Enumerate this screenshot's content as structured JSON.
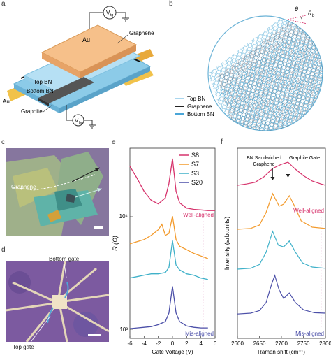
{
  "panel_labels": {
    "a": "a",
    "b": "b",
    "c": "c",
    "d": "d",
    "e": "e",
    "f": "f"
  },
  "panel_a": {
    "au_top": "Au",
    "au_left": "Au",
    "graphene": "Graphene",
    "top_bn": "Top BN",
    "bottom_bn": "Bottom BN",
    "graphite": "Graphite",
    "vtg": "V",
    "vtg_sub": "tg",
    "vbg": "V",
    "vbg_sub": "bg"
  },
  "panel_b": {
    "theta": "θ",
    "theta_b": "θ",
    "theta_b_sub": "b",
    "legend": [
      "Top BN",
      "Graphene",
      "Bottom BN"
    ],
    "colors": {
      "top_bn": "#a9d6ee",
      "graphene": "#222222",
      "bottom_bn": "#4aa6d8"
    }
  },
  "panel_c": {
    "graphene": "Graphene"
  },
  "panel_d": {
    "bottom_gate": "Bottom gate",
    "top_gate": "Top gate"
  },
  "chart_data": [
    {
      "type": "line",
      "panel": "e",
      "xlabel": "Gate Voltage (V)",
      "ylabel": "R (Ω)",
      "xlim": [
        -6,
        6
      ],
      "x_ticks": [
        "-6",
        "-4",
        "-2",
        "0",
        "2",
        "4",
        "6"
      ],
      "y_ticks": [
        "10³",
        "10⁴"
      ],
      "annotations": [
        "Well-aligned",
        "Mis-aligned"
      ],
      "legend_position": "top-right",
      "series": [
        {
          "name": "S8",
          "color": "#d6336c",
          "x": [
            -6,
            -5,
            -4,
            -3,
            -2,
            -1,
            -0.5,
            0,
            0.5,
            1,
            2,
            3,
            4,
            5,
            6
          ],
          "y": [
            21000,
            17000,
            13500,
            11500,
            10800,
            12000,
            15500,
            24000,
            13500,
            11000,
            10000,
            9800,
            9700,
            9600,
            9600
          ]
        },
        {
          "name": "S7",
          "color": "#f39a2b",
          "x": [
            -6,
            -5,
            -4,
            -3,
            -2,
            -1.5,
            -1,
            -0.5,
            0,
            0.5,
            1,
            2,
            3,
            4,
            5
          ],
          "y": [
            6800,
            7000,
            7200,
            7600,
            8200,
            8800,
            7600,
            7800,
            9800,
            7200,
            6600,
            6300,
            6000,
            5800,
            5600
          ]
        },
        {
          "name": "S3",
          "color": "#3fb1c9",
          "x": [
            -6,
            -5,
            -4,
            -3,
            -2,
            -1,
            -0.5,
            0,
            0.5,
            1,
            2,
            3,
            4,
            5
          ],
          "y": [
            4000,
            4100,
            4200,
            4300,
            4300,
            4400,
            4800,
            7600,
            5000,
            4600,
            4300,
            4200,
            4000,
            3900
          ]
        },
        {
          "name": "S20",
          "color": "#4b4fa8",
          "x": [
            -6,
            -5,
            -4,
            -3,
            -2,
            -1,
            -0.5,
            0,
            0.5,
            1,
            2,
            3,
            4,
            5
          ],
          "y": [
            1040,
            1050,
            1060,
            1070,
            1100,
            1150,
            1300,
            1900,
            1300,
            1150,
            1080,
            1060,
            1050,
            1050
          ]
        }
      ]
    },
    {
      "type": "line",
      "panel": "f",
      "xlabel": "Raman shift (cm⁻¹)",
      "ylabel": "Intensity (arb.units)",
      "xlim": [
        2600,
        2800
      ],
      "x_ticks": [
        "2600",
        "2650",
        "2700",
        "2750",
        "2800"
      ],
      "annotations": [
        "BN Sandwiched Graphene",
        "Graphite Gate",
        "Well-aligned",
        "Mis-aligned"
      ],
      "series": [
        {
          "color": "#d6336c",
          "x": [
            2600,
            2620,
            2640,
            2660,
            2680,
            2700,
            2715,
            2730,
            2750,
            2770,
            2790,
            2800
          ],
          "y": [
            3.55,
            3.58,
            3.62,
            3.75,
            3.95,
            4.05,
            4.1,
            3.95,
            3.78,
            3.65,
            3.58,
            3.55
          ]
        },
        {
          "color": "#f39a2b",
          "x": [
            2600,
            2630,
            2650,
            2665,
            2680,
            2695,
            2705,
            2718,
            2730,
            2745,
            2770,
            2800
          ],
          "y": [
            2.5,
            2.52,
            2.6,
            2.9,
            3.35,
            3.05,
            3.1,
            3.3,
            3.05,
            2.7,
            2.55,
            2.52
          ]
        },
        {
          "color": "#3fb1c9",
          "x": [
            2600,
            2630,
            2650,
            2665,
            2680,
            2693,
            2705,
            2718,
            2732,
            2748,
            2770,
            2800
          ],
          "y": [
            1.55,
            1.57,
            1.66,
            1.95,
            2.45,
            2.12,
            2.08,
            2.22,
            1.95,
            1.7,
            1.6,
            1.57
          ]
        },
        {
          "color": "#4b4fa8",
          "x": [
            2600,
            2630,
            2650,
            2665,
            2678,
            2685,
            2695,
            2705,
            2718,
            2732,
            2750,
            2775,
            2800
          ],
          "y": [
            0.48,
            0.5,
            0.56,
            0.75,
            1.2,
            1.4,
            1.05,
            0.85,
            0.98,
            0.75,
            0.58,
            0.51,
            0.5
          ]
        }
      ]
    }
  ]
}
